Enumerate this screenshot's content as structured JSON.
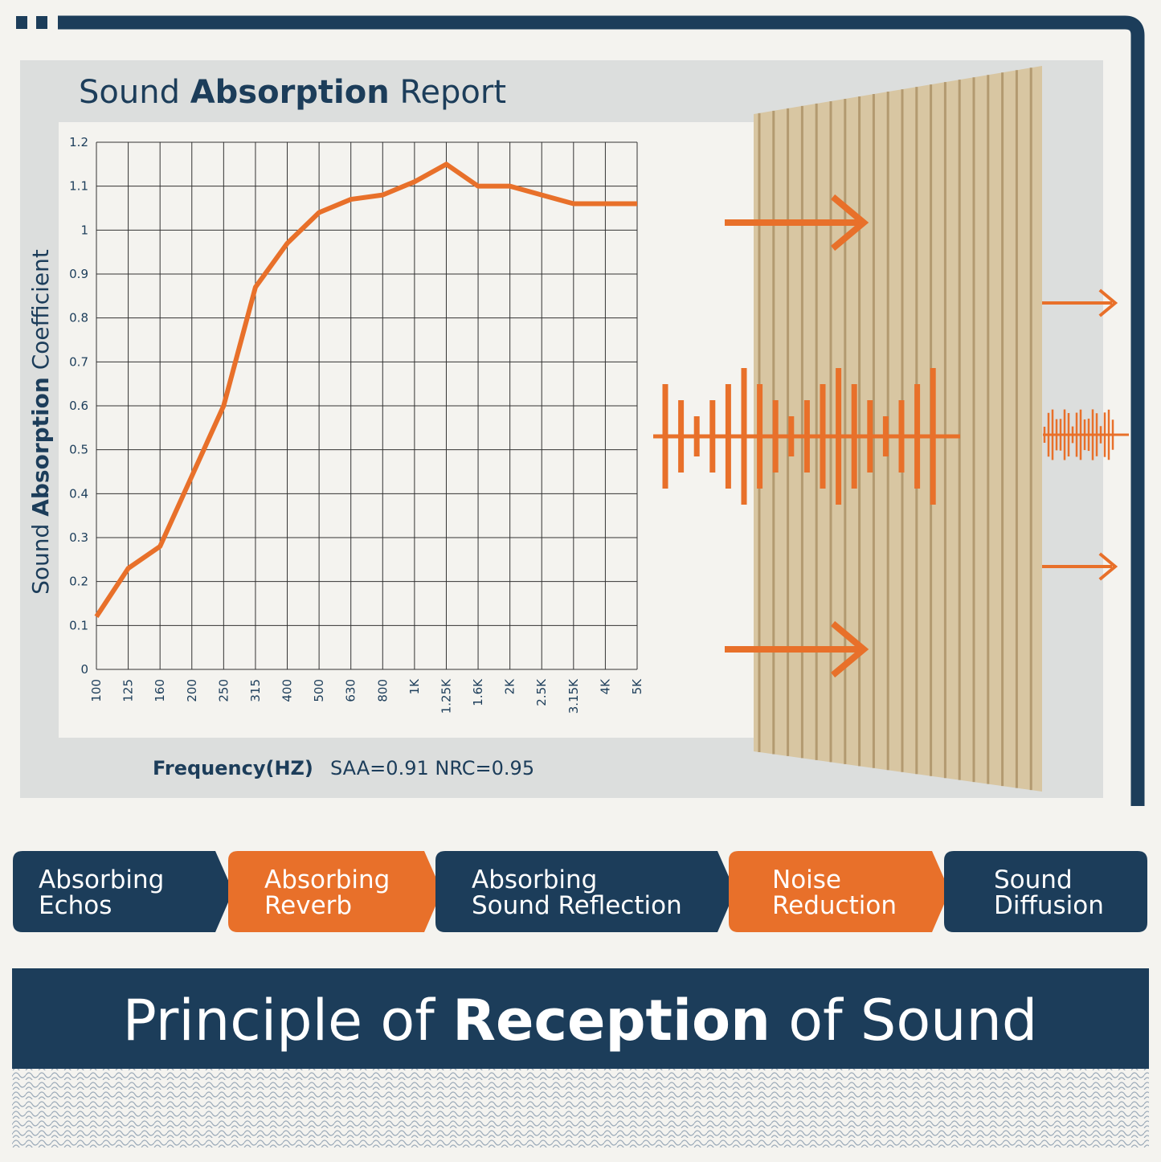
{
  "chart_data": {
    "type": "line",
    "title": [
      "Sound",
      "Absorption",
      "Report"
    ],
    "y_label": [
      "Sound",
      "Absorption",
      "Coefficient"
    ],
    "x_label": "Frequency(HZ)",
    "annotation": "SAA=0.91  NRC=0.95",
    "categories": [
      "100",
      "125",
      "160",
      "200",
      "250",
      "315",
      "400",
      "500",
      "630",
      "800",
      "1K",
      "1.25K",
      "1.6K",
      "2K",
      "2.5K",
      "3.15K",
      "4K",
      "5K"
    ],
    "values": [
      0.12,
      0.23,
      0.28,
      0.44,
      0.6,
      0.87,
      0.97,
      1.04,
      1.07,
      1.08,
      1.11,
      1.15,
      1.1,
      1.1,
      1.08,
      1.06,
      1.06,
      1.06
    ],
    "color": "#e8702a",
    "ylim": [
      0,
      1.2
    ],
    "yticks": [
      0,
      0.1,
      0.2,
      0.3,
      0.4,
      0.5,
      0.6,
      0.7,
      0.8,
      0.9,
      1,
      1.1,
      1.2
    ],
    "grid": true
  },
  "features": [
    [
      "Absorbing",
      "Echos"
    ],
    [
      "Absorbing",
      "Reverb"
    ],
    [
      "Absorbing",
      "Sound Reflection"
    ],
    [
      "Noise",
      "Reduction"
    ],
    [
      "Sound",
      "Diffusion"
    ]
  ],
  "banner": [
    "Principle of",
    "Reception",
    "of Sound"
  ]
}
